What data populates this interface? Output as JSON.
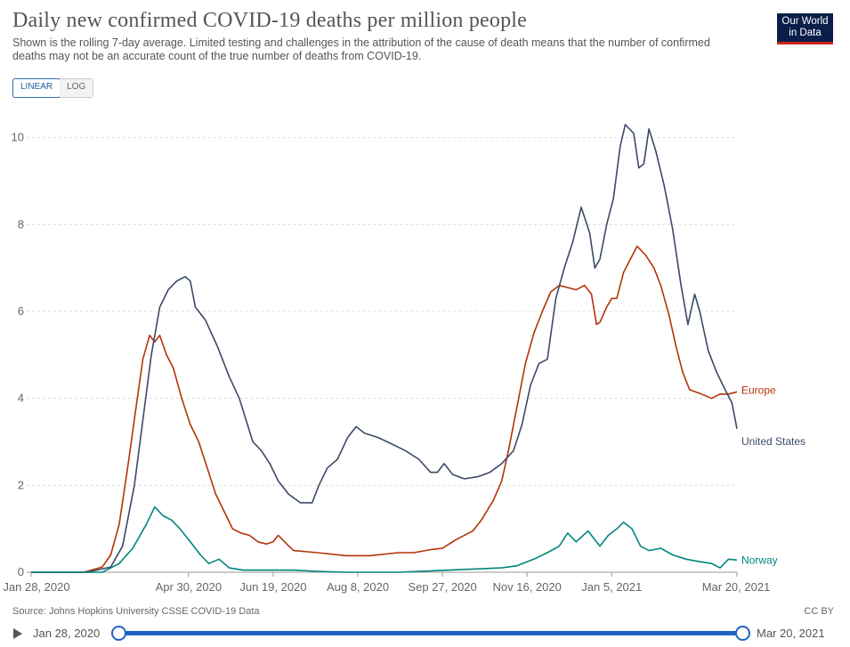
{
  "header": {
    "title": "Daily new confirmed COVID-19 deaths per million people",
    "subtitle": "Shown is the rolling 7-day average. Limited testing and challenges in the attribution of the cause of death means that the number of confirmed deaths may not be an accurate count of the true number of deaths from COVID-19.",
    "logo_line1": "Our World",
    "logo_line2": "in Data"
  },
  "controls": {
    "linear_label": "LINEAR",
    "log_label": "LOG",
    "active": "linear"
  },
  "footer": {
    "source": "Source: Johns Hopkins University CSSE COVID-19 Data",
    "license": "CC BY"
  },
  "timeline": {
    "start_label": "Jan 28, 2020",
    "end_label": "Mar 20, 2021"
  },
  "colors": {
    "europe": "#b13507",
    "united_states": "#3a4a66",
    "norway": "#00847e",
    "grid": "#dddddd",
    "timeline": "#1e63c5"
  },
  "chart_data": {
    "type": "line",
    "title": "Daily new confirmed COVID-19 deaths per million people",
    "xlabel": "",
    "ylabel": "",
    "ylim": [
      0,
      10.3
    ],
    "yticks": [
      0,
      2,
      4,
      6,
      8,
      10
    ],
    "xlim": [
      "2020-01-28",
      "2021-03-20"
    ],
    "xticks": [
      {
        "date": "2020-01-28",
        "label": "Jan 28, 2020"
      },
      {
        "date": "2020-04-30",
        "label": "Apr 30, 2020"
      },
      {
        "date": "2020-06-19",
        "label": "Jun 19, 2020"
      },
      {
        "date": "2020-08-08",
        "label": "Aug 8, 2020"
      },
      {
        "date": "2020-09-27",
        "label": "Sep 27, 2020"
      },
      {
        "date": "2020-11-16",
        "label": "Nov 16, 2020"
      },
      {
        "date": "2021-01-05",
        "label": "Jan 5, 2021"
      },
      {
        "date": "2021-03-20",
        "label": "Mar 20, 2021"
      }
    ],
    "grid": true,
    "legend": "inline-right",
    "series": [
      {
        "name": "Europe",
        "points": [
          [
            "2020-01-28",
            0
          ],
          [
            "2020-02-28",
            0
          ],
          [
            "2020-03-10",
            0.12
          ],
          [
            "2020-03-15",
            0.4
          ],
          [
            "2020-03-20",
            1.1
          ],
          [
            "2020-03-25",
            2.4
          ],
          [
            "2020-03-30",
            3.8
          ],
          [
            "2020-04-03",
            4.9
          ],
          [
            "2020-04-07",
            5.45
          ],
          [
            "2020-04-10",
            5.3
          ],
          [
            "2020-04-13",
            5.45
          ],
          [
            "2020-04-17",
            5.0
          ],
          [
            "2020-04-21",
            4.7
          ],
          [
            "2020-04-26",
            4.0
          ],
          [
            "2020-05-01",
            3.4
          ],
          [
            "2020-05-06",
            3.0
          ],
          [
            "2020-05-11",
            2.4
          ],
          [
            "2020-05-16",
            1.8
          ],
          [
            "2020-05-21",
            1.4
          ],
          [
            "2020-05-26",
            1.0
          ],
          [
            "2020-05-31",
            0.9
          ],
          [
            "2020-06-05",
            0.85
          ],
          [
            "2020-06-10",
            0.7
          ],
          [
            "2020-06-15",
            0.65
          ],
          [
            "2020-06-19",
            0.7
          ],
          [
            "2020-06-22",
            0.85
          ],
          [
            "2020-06-27",
            0.65
          ],
          [
            "2020-07-01",
            0.5
          ],
          [
            "2020-07-15",
            0.45
          ],
          [
            "2020-08-01",
            0.38
          ],
          [
            "2020-08-15",
            0.38
          ],
          [
            "2020-09-01",
            0.45
          ],
          [
            "2020-09-10",
            0.45
          ],
          [
            "2020-09-20",
            0.52
          ],
          [
            "2020-09-27",
            0.55
          ],
          [
            "2020-10-05",
            0.75
          ],
          [
            "2020-10-15",
            0.95
          ],
          [
            "2020-10-20",
            1.2
          ],
          [
            "2020-10-27",
            1.65
          ],
          [
            "2020-11-01",
            2.1
          ],
          [
            "2020-11-05",
            2.8
          ],
          [
            "2020-11-10",
            3.8
          ],
          [
            "2020-11-15",
            4.8
          ],
          [
            "2020-11-20",
            5.5
          ],
          [
            "2020-11-25",
            6.0
          ],
          [
            "2020-11-30",
            6.45
          ],
          [
            "2020-12-05",
            6.6
          ],
          [
            "2020-12-10",
            6.55
          ],
          [
            "2020-12-15",
            6.5
          ],
          [
            "2020-12-20",
            6.6
          ],
          [
            "2020-12-24",
            6.4
          ],
          [
            "2020-12-27",
            5.7
          ],
          [
            "2020-12-29",
            5.75
          ],
          [
            "2021-01-02",
            6.1
          ],
          [
            "2021-01-05",
            6.3
          ],
          [
            "2021-01-08",
            6.3
          ],
          [
            "2021-01-12",
            6.9
          ],
          [
            "2021-01-16",
            7.2
          ],
          [
            "2021-01-20",
            7.5
          ],
          [
            "2021-01-25",
            7.3
          ],
          [
            "2021-01-30",
            7.0
          ],
          [
            "2021-02-03",
            6.6
          ],
          [
            "2021-02-08",
            5.9
          ],
          [
            "2021-02-12",
            5.2
          ],
          [
            "2021-02-16",
            4.6
          ],
          [
            "2021-02-20",
            4.2
          ],
          [
            "2021-02-27",
            4.1
          ],
          [
            "2021-03-05",
            4.0
          ],
          [
            "2021-03-10",
            4.1
          ],
          [
            "2021-03-15",
            4.1
          ],
          [
            "2021-03-20",
            4.15
          ]
        ]
      },
      {
        "name": "United States",
        "points": [
          [
            "2020-01-28",
            0
          ],
          [
            "2020-03-01",
            0
          ],
          [
            "2020-03-15",
            0.12
          ],
          [
            "2020-03-22",
            0.6
          ],
          [
            "2020-03-29",
            2.0
          ],
          [
            "2020-04-03",
            3.5
          ],
          [
            "2020-04-08",
            5.0
          ],
          [
            "2020-04-13",
            6.1
          ],
          [
            "2020-04-18",
            6.5
          ],
          [
            "2020-04-23",
            6.7
          ],
          [
            "2020-04-28",
            6.8
          ],
          [
            "2020-05-01",
            6.7
          ],
          [
            "2020-05-04",
            6.1
          ],
          [
            "2020-05-10",
            5.8
          ],
          [
            "2020-05-17",
            5.2
          ],
          [
            "2020-05-24",
            4.5
          ],
          [
            "2020-05-30",
            4.0
          ],
          [
            "2020-06-03",
            3.5
          ],
          [
            "2020-06-07",
            3.0
          ],
          [
            "2020-06-12",
            2.8
          ],
          [
            "2020-06-17",
            2.5
          ],
          [
            "2020-06-22",
            2.1
          ],
          [
            "2020-06-28",
            1.8
          ],
          [
            "2020-07-05",
            1.6
          ],
          [
            "2020-07-12",
            1.6
          ],
          [
            "2020-07-16",
            2.0
          ],
          [
            "2020-07-21",
            2.4
          ],
          [
            "2020-07-27",
            2.6
          ],
          [
            "2020-08-02",
            3.1
          ],
          [
            "2020-08-07",
            3.35
          ],
          [
            "2020-08-12",
            3.2
          ],
          [
            "2020-08-20",
            3.1
          ],
          [
            "2020-08-28",
            2.95
          ],
          [
            "2020-09-05",
            2.8
          ],
          [
            "2020-09-13",
            2.6
          ],
          [
            "2020-09-20",
            2.3
          ],
          [
            "2020-09-24",
            2.3
          ],
          [
            "2020-09-28",
            2.5
          ],
          [
            "2020-10-03",
            2.25
          ],
          [
            "2020-10-10",
            2.15
          ],
          [
            "2020-10-18",
            2.2
          ],
          [
            "2020-10-25",
            2.3
          ],
          [
            "2020-11-01",
            2.5
          ],
          [
            "2020-11-08",
            2.8
          ],
          [
            "2020-11-13",
            3.4
          ],
          [
            "2020-11-18",
            4.3
          ],
          [
            "2020-11-23",
            4.8
          ],
          [
            "2020-11-28",
            4.9
          ],
          [
            "2020-12-03",
            6.3
          ],
          [
            "2020-12-08",
            7.0
          ],
          [
            "2020-12-13",
            7.6
          ],
          [
            "2020-12-18",
            8.4
          ],
          [
            "2020-12-23",
            7.8
          ],
          [
            "2020-12-26",
            7.0
          ],
          [
            "2020-12-29",
            7.2
          ],
          [
            "2021-01-02",
            8.0
          ],
          [
            "2021-01-06",
            8.6
          ],
          [
            "2021-01-10",
            9.8
          ],
          [
            "2021-01-13",
            10.3
          ],
          [
            "2021-01-18",
            10.1
          ],
          [
            "2021-01-21",
            9.3
          ],
          [
            "2021-01-24",
            9.4
          ],
          [
            "2021-01-27",
            10.2
          ],
          [
            "2021-01-31",
            9.7
          ],
          [
            "2021-02-05",
            8.9
          ],
          [
            "2021-02-10",
            7.9
          ],
          [
            "2021-02-15",
            6.6
          ],
          [
            "2021-02-19",
            5.7
          ],
          [
            "2021-02-23",
            6.4
          ],
          [
            "2021-02-26",
            6.0
          ],
          [
            "2021-03-03",
            5.1
          ],
          [
            "2021-03-08",
            4.6
          ],
          [
            "2021-03-13",
            4.2
          ],
          [
            "2021-03-17",
            3.9
          ],
          [
            "2021-03-20",
            3.3
          ]
        ]
      },
      {
        "name": "Norway",
        "points": [
          [
            "2020-01-28",
            0
          ],
          [
            "2020-03-10",
            0
          ],
          [
            "2020-03-20",
            0.2
          ],
          [
            "2020-03-28",
            0.55
          ],
          [
            "2020-04-05",
            1.1
          ],
          [
            "2020-04-10",
            1.5
          ],
          [
            "2020-04-15",
            1.3
          ],
          [
            "2020-04-20",
            1.2
          ],
          [
            "2020-04-25",
            1.0
          ],
          [
            "2020-05-01",
            0.7
          ],
          [
            "2020-05-07",
            0.4
          ],
          [
            "2020-05-12",
            0.2
          ],
          [
            "2020-05-18",
            0.3
          ],
          [
            "2020-05-24",
            0.1
          ],
          [
            "2020-06-01",
            0.05
          ],
          [
            "2020-06-15",
            0.05
          ],
          [
            "2020-07-01",
            0.05
          ],
          [
            "2020-07-15",
            0.02
          ],
          [
            "2020-08-01",
            0
          ],
          [
            "2020-09-01",
            0
          ],
          [
            "2020-10-01",
            0.05
          ],
          [
            "2020-10-20",
            0.08
          ],
          [
            "2020-11-01",
            0.1
          ],
          [
            "2020-11-10",
            0.15
          ],
          [
            "2020-11-20",
            0.3
          ],
          [
            "2020-11-28",
            0.45
          ],
          [
            "2020-12-05",
            0.6
          ],
          [
            "2020-12-10",
            0.9
          ],
          [
            "2020-12-15",
            0.7
          ],
          [
            "2020-12-22",
            0.95
          ],
          [
            "2020-12-29",
            0.6
          ],
          [
            "2021-01-03",
            0.85
          ],
          [
            "2021-01-08",
            1.0
          ],
          [
            "2021-01-12",
            1.15
          ],
          [
            "2021-01-17",
            1.0
          ],
          [
            "2021-01-22",
            0.6
          ],
          [
            "2021-01-27",
            0.5
          ],
          [
            "2021-02-03",
            0.55
          ],
          [
            "2021-02-10",
            0.4
          ],
          [
            "2021-02-18",
            0.3
          ],
          [
            "2021-02-25",
            0.25
          ],
          [
            "2021-03-05",
            0.2
          ],
          [
            "2021-03-10",
            0.1
          ],
          [
            "2021-03-15",
            0.3
          ],
          [
            "2021-03-20",
            0.28
          ]
        ]
      }
    ]
  }
}
